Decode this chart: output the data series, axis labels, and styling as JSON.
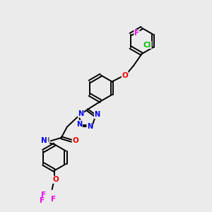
{
  "bg_color": "#ebebeb",
  "atom_colors": {
    "C": "#000000",
    "N": "#0000ee",
    "O": "#ee0000",
    "F": "#ee00ee",
    "Cl": "#00bb00",
    "H": "#666666"
  },
  "bond_color": "#000000",
  "bond_width": 1.4,
  "font_size": 7.5
}
